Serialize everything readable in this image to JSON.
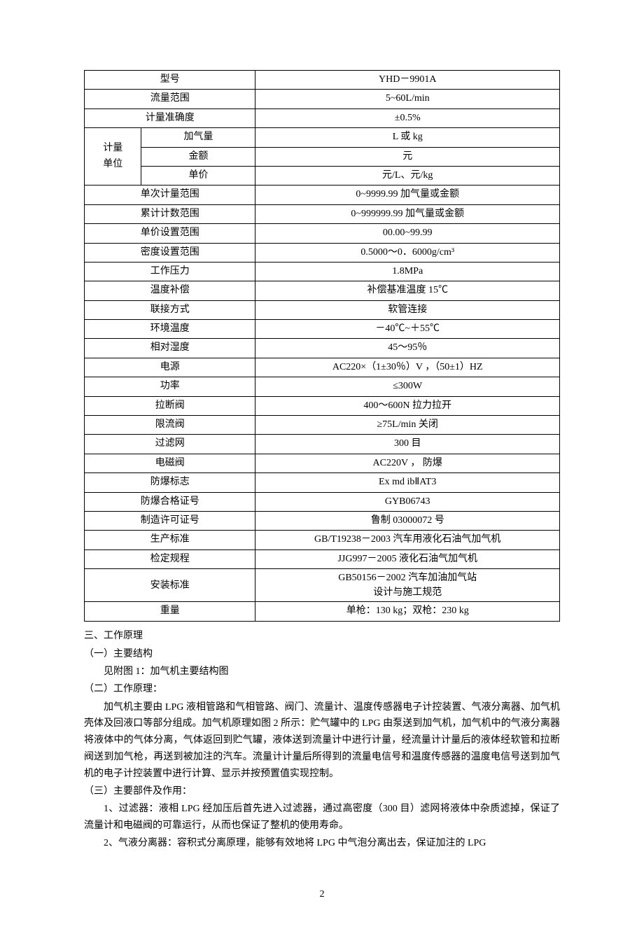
{
  "table": {
    "rows": [
      {
        "label": "型号",
        "value": "YHD－9901A"
      },
      {
        "label": "流量范围",
        "value": "5~60L/min"
      },
      {
        "label": "计量准确度",
        "value": "±0.5%"
      }
    ],
    "unit_group": {
      "group_label": "计量\n单位",
      "items": [
        {
          "sub": "加气量",
          "value": "L 或 kg"
        },
        {
          "sub": "金额",
          "value": "元"
        },
        {
          "sub": "单价",
          "value": "元/L、元/kg"
        }
      ]
    },
    "rows2": [
      {
        "label": "单次计量范围",
        "value": "0~9999.99 加气量或金额"
      },
      {
        "label": "累计计数范围",
        "value": "0~999999.99 加气量或金额"
      },
      {
        "label": "单价设置范围",
        "value": "00.00~99.99"
      },
      {
        "label": "密度设置范围",
        "value": "0.5000～0．6000g/cm³"
      },
      {
        "label": "工作压力",
        "value": "1.8MPa"
      },
      {
        "label": "温度补偿",
        "value": "补偿基准温度 15℃"
      },
      {
        "label": "联接方式",
        "value": "软管连接"
      },
      {
        "label": "环境温度",
        "value": "－40℃~＋55℃"
      },
      {
        "label": "相对湿度",
        "value": "45～95％"
      },
      {
        "label": "电源",
        "value": "AC220×（1±30％）V ，（50±1）HZ"
      },
      {
        "label": "功率",
        "value": "≤300W"
      },
      {
        "label": "拉断阀",
        "value": "400～600N 拉力拉开"
      },
      {
        "label": "限流阀",
        "value": "≥75L/min 关闭"
      },
      {
        "label": "过滤网",
        "value": "300 目"
      },
      {
        "label": "电磁阀",
        "value": "AC220V ， 防爆"
      },
      {
        "label": "防爆标志",
        "value": "Ex md ibⅡAT3"
      },
      {
        "label": "防爆合格证号",
        "value": "GYB06743"
      },
      {
        "label": "制造许可证号",
        "value": "鲁制 03000072 号"
      },
      {
        "label": "生产标准",
        "value": "GB/T19238－2003 汽车用液化石油气加气机"
      },
      {
        "label": "检定规程",
        "value": "JJG997－2005 液化石油气加气机"
      }
    ],
    "install_std": {
      "label": "安装标准",
      "value_line1": "GB50156－2002 汽车加油加气站",
      "value_line2": "设计与施工规范"
    },
    "weight": {
      "label": "重量",
      "value": "单枪：130 kg；双枪：230 kg"
    }
  },
  "body": {
    "h_principle": "三、工作原理",
    "sub1": "（一）主要结构",
    "sub1_text": "见附图 1：加气机主要结构图",
    "sub2": "（二）工作原理：",
    "sub2_para": "加气机主要由 LPG 液相管路和气相管路、阀门、流量计、温度传感器电子计控装置、气液分离器、加气机壳体及回液口等部分组成。加气机原理如图 2 所示：贮气罐中的 LPG 由泵送到加气机，加气机中的气液分离器将液体中的气体分离，气体返回到贮气罐，液体送到流量计中进行计量，经流量计计量后的液体经软管和拉断阀送到加气枪，再送到被加注的汽车。流量计计量后所得到的流量电信号和温度传感器的温度电信号送到加气机的电子计控装置中进行计算、显示并按预置值实现控制。",
    "sub3": "（三）主要部件及作用：",
    "sub3_item1": "1、过滤器：液相 LPG 经加压后首先进入过滤器，通过高密度（300 目）滤网将液体中杂质滤掉，保证了流量计和电磁阀的可靠运行，从而也保证了整机的使用寿命。",
    "sub3_item2": "2、气液分离器：容积式分离原理，能够有效地将 LPG 中气泡分离出去，保证加注的 LPG"
  },
  "page_number": "2"
}
